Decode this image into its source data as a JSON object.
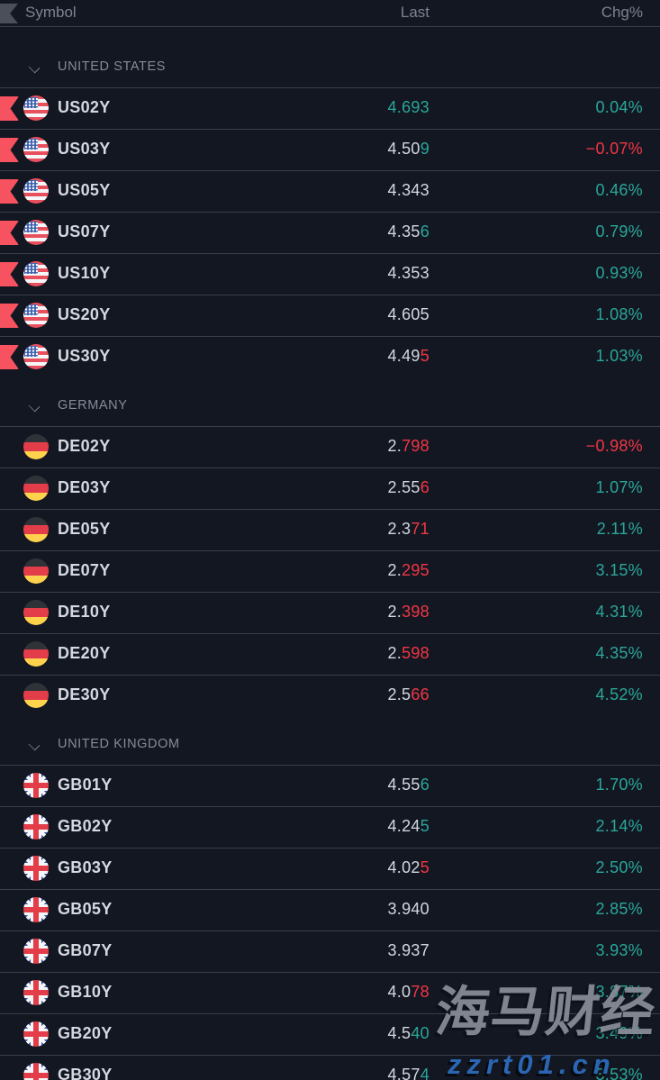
{
  "header": {
    "symbol": "Symbol",
    "last": "Last",
    "chg": "Chg%"
  },
  "groups": [
    {
      "name": "UNITED STATES",
      "country": "us",
      "rows": [
        {
          "symbol": "US02Y",
          "flagged": true,
          "last_base": "",
          "last_tail": "4.693",
          "tail_dir": "up",
          "chg": "0.04%",
          "chg_dir": "up"
        },
        {
          "symbol": "US03Y",
          "flagged": true,
          "last_base": "4.50",
          "last_tail": "9",
          "tail_dir": "up",
          "chg": "−0.07%",
          "chg_dir": "down"
        },
        {
          "symbol": "US05Y",
          "flagged": true,
          "last_base": "4.343",
          "last_tail": "",
          "tail_dir": "none",
          "chg": "0.46%",
          "chg_dir": "up"
        },
        {
          "symbol": "US07Y",
          "flagged": true,
          "last_base": "4.35",
          "last_tail": "6",
          "tail_dir": "up",
          "chg": "0.79%",
          "chg_dir": "up"
        },
        {
          "symbol": "US10Y",
          "flagged": true,
          "last_base": "4.353",
          "last_tail": "",
          "tail_dir": "none",
          "chg": "0.93%",
          "chg_dir": "up"
        },
        {
          "symbol": "US20Y",
          "flagged": true,
          "last_base": "4.605",
          "last_tail": "",
          "tail_dir": "none",
          "chg": "1.08%",
          "chg_dir": "up"
        },
        {
          "symbol": "US30Y",
          "flagged": true,
          "last_base": "4.49",
          "last_tail": "5",
          "tail_dir": "down",
          "chg": "1.03%",
          "chg_dir": "up"
        }
      ]
    },
    {
      "name": "GERMANY",
      "country": "de",
      "rows": [
        {
          "symbol": "DE02Y",
          "flagged": false,
          "last_base": "2.",
          "last_tail": "798",
          "tail_dir": "down",
          "chg": "−0.98%",
          "chg_dir": "down"
        },
        {
          "symbol": "DE03Y",
          "flagged": false,
          "last_base": "2.55",
          "last_tail": "6",
          "tail_dir": "down",
          "chg": "1.07%",
          "chg_dir": "up"
        },
        {
          "symbol": "DE05Y",
          "flagged": false,
          "last_base": "2.3",
          "last_tail": "71",
          "tail_dir": "down",
          "chg": "2.11%",
          "chg_dir": "up"
        },
        {
          "symbol": "DE07Y",
          "flagged": false,
          "last_base": "2.",
          "last_tail": "295",
          "tail_dir": "down",
          "chg": "3.15%",
          "chg_dir": "up"
        },
        {
          "symbol": "DE10Y",
          "flagged": false,
          "last_base": "2.",
          "last_tail": "398",
          "tail_dir": "down",
          "chg": "4.31%",
          "chg_dir": "up"
        },
        {
          "symbol": "DE20Y",
          "flagged": false,
          "last_base": "2.",
          "last_tail": "598",
          "tail_dir": "down",
          "chg": "4.35%",
          "chg_dir": "up"
        },
        {
          "symbol": "DE30Y",
          "flagged": false,
          "last_base": "2.5",
          "last_tail": "66",
          "tail_dir": "down",
          "chg": "4.52%",
          "chg_dir": "up"
        }
      ]
    },
    {
      "name": "UNITED KINGDOM",
      "country": "gb",
      "rows": [
        {
          "symbol": "GB01Y",
          "flagged": false,
          "last_base": "4.55",
          "last_tail": "6",
          "tail_dir": "up",
          "chg": "1.70%",
          "chg_dir": "up"
        },
        {
          "symbol": "GB02Y",
          "flagged": false,
          "last_base": "4.24",
          "last_tail": "5",
          "tail_dir": "up",
          "chg": "2.14%",
          "chg_dir": "up"
        },
        {
          "symbol": "GB03Y",
          "flagged": false,
          "last_base": "4.02",
          "last_tail": "5",
          "tail_dir": "down",
          "chg": "2.50%",
          "chg_dir": "up"
        },
        {
          "symbol": "GB05Y",
          "flagged": false,
          "last_base": "3.940",
          "last_tail": "",
          "tail_dir": "none",
          "chg": "2.85%",
          "chg_dir": "up"
        },
        {
          "symbol": "GB07Y",
          "flagged": false,
          "last_base": "3.937",
          "last_tail": "",
          "tail_dir": "none",
          "chg": "3.93%",
          "chg_dir": "up"
        },
        {
          "symbol": "GB10Y",
          "flagged": false,
          "last_base": "4.0",
          "last_tail": "78",
          "tail_dir": "down",
          "chg": "3.87%",
          "chg_dir": "up"
        },
        {
          "symbol": "GB20Y",
          "flagged": false,
          "last_base": "4.5",
          "last_tail": "40",
          "tail_dir": "up",
          "chg": "3.49%",
          "chg_dir": "up"
        },
        {
          "symbol": "GB30Y",
          "flagged": false,
          "last_base": "4.57",
          "last_tail": "4",
          "tail_dir": "up",
          "chg": "3.53%",
          "chg_dir": "up"
        }
      ]
    }
  ],
  "watermark": {
    "line1": "海马财经",
    "line2": "zzrt01.cn"
  },
  "colors": {
    "background": "#131722",
    "text": "#d5d8e0",
    "muted": "#7c8290",
    "up": "#2aa79a",
    "down": "#f23645",
    "flag_marker": "#f7525f",
    "separator": "#3a3e4b",
    "watermark_gray": "#8a8e99",
    "watermark_blue": "#2b66b2"
  }
}
